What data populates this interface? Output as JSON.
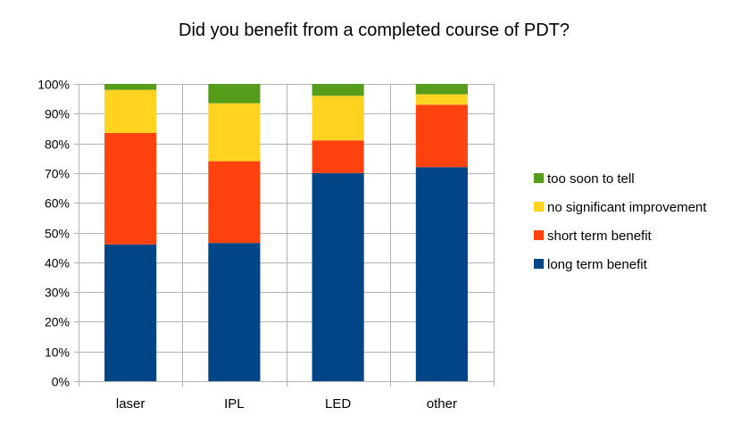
{
  "chart_data": {
    "type": "bar",
    "stacked": true,
    "title": "Did you benefit from a completed course of PDT?",
    "xlabel": "",
    "ylabel": "",
    "ylim": [
      0,
      100
    ],
    "y_ticks": [
      "0%",
      "10%",
      "20%",
      "30%",
      "40%",
      "50%",
      "60%",
      "70%",
      "80%",
      "90%",
      "100%"
    ],
    "grid": true,
    "legend_position": "right",
    "categories": [
      "laser",
      "IPL",
      "LED",
      "other"
    ],
    "series": [
      {
        "name": "long term benefit",
        "color": "#004586",
        "values": [
          46,
          46.5,
          70,
          72
        ]
      },
      {
        "name": "short term benefit",
        "color": "#ff420e",
        "values": [
          37.5,
          27.5,
          11,
          21
        ]
      },
      {
        "name": "no significant improvement",
        "color": "#ffd320",
        "values": [
          14.5,
          19.5,
          15,
          3.5
        ]
      },
      {
        "name": "too soon to tell",
        "color": "#579d1c",
        "values": [
          2,
          6.5,
          4,
          3.5
        ]
      }
    ],
    "legend_order": [
      "too soon to tell",
      "no significant improvement",
      "short term benefit",
      "long term benefit"
    ]
  }
}
